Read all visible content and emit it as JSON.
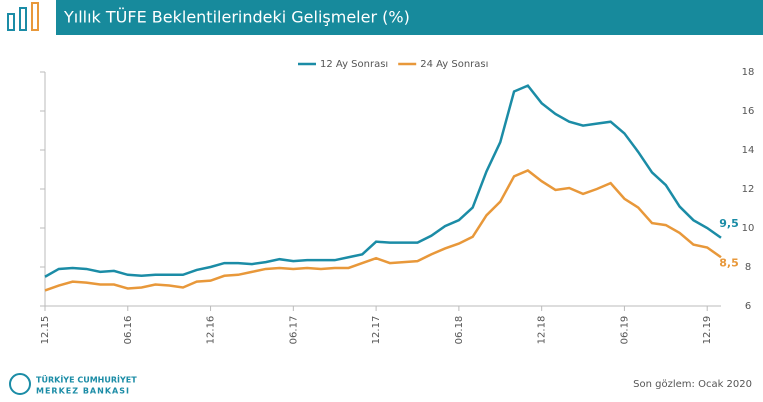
{
  "header": {
    "title": "Yıllık TÜFE Beklentilerindeki Gelişmeler (%)"
  },
  "logo_lines": [
    "TÜRKİYE CUMHURİYET",
    "MERKEZ BANKASI"
  ],
  "note": "Son gözlem: Ocak 2020",
  "chart_data": {
    "type": "line",
    "categories": [
      "12.15",
      null,
      null,
      null,
      null,
      null,
      "06.16",
      null,
      null,
      null,
      null,
      null,
      "12.16",
      null,
      null,
      null,
      null,
      null,
      "06.17",
      null,
      null,
      null,
      null,
      null,
      "12.17",
      null,
      null,
      null,
      null,
      null,
      "06.18",
      null,
      null,
      null,
      null,
      null,
      "12.18",
      null,
      null,
      null,
      null,
      null,
      "06.19",
      null,
      null,
      null,
      null,
      null,
      "12.19",
      null
    ],
    "series": [
      {
        "name": "12 Ay Sonrası",
        "color": "#1b8ca6",
        "values": [
          7.5,
          7.9,
          7.95,
          7.9,
          7.75,
          7.8,
          7.6,
          7.55,
          7.6,
          7.6,
          7.6,
          7.85,
          8.0,
          8.2,
          8.2,
          8.15,
          8.25,
          8.4,
          8.3,
          8.35,
          8.35,
          8.35,
          8.5,
          8.65,
          9.3,
          9.25,
          9.25,
          9.25,
          9.6,
          10.1,
          10.4,
          11.05,
          12.9,
          14.4,
          17.0,
          17.3,
          16.4,
          15.85,
          15.45,
          15.25,
          15.35,
          15.45,
          14.85,
          13.9,
          12.85,
          12.2,
          11.1,
          10.4,
          10.0,
          9.5
        ],
        "value_labels": [
          null,
          null,
          null,
          null,
          null,
          null,
          null,
          null,
          null,
          null,
          null,
          null,
          null,
          null,
          null,
          null,
          null,
          null,
          null,
          null,
          null,
          null,
          null,
          null,
          null,
          null,
          null,
          null,
          null,
          null,
          null,
          null,
          null,
          null,
          null,
          null,
          null,
          null,
          null,
          null,
          null,
          null,
          null,
          null,
          null,
          null,
          null,
          null,
          null,
          "9,5"
        ]
      },
      {
        "name": "24 Ay Sonrası",
        "color": "#e8983a",
        "values": [
          6.8,
          7.05,
          7.25,
          7.2,
          7.1,
          7.1,
          6.9,
          6.95,
          7.1,
          7.05,
          6.95,
          7.25,
          7.3,
          7.55,
          7.6,
          7.75,
          7.9,
          7.95,
          7.9,
          7.95,
          7.9,
          7.95,
          7.95,
          8.2,
          8.45,
          8.2,
          8.25,
          8.3,
          8.65,
          8.95,
          9.2,
          9.55,
          10.65,
          11.35,
          12.65,
          12.95,
          12.4,
          11.95,
          12.05,
          11.75,
          12.0,
          12.3,
          11.5,
          11.05,
          10.25,
          10.15,
          9.75,
          9.15,
          9.0,
          8.5
        ],
        "value_labels": [
          null,
          null,
          null,
          null,
          null,
          null,
          null,
          null,
          null,
          null,
          null,
          null,
          null,
          null,
          null,
          null,
          null,
          null,
          null,
          null,
          null,
          null,
          null,
          null,
          null,
          null,
          null,
          null,
          null,
          null,
          null,
          null,
          null,
          null,
          null,
          null,
          null,
          null,
          null,
          null,
          null,
          null,
          null,
          null,
          null,
          null,
          null,
          null,
          null,
          "8,5"
        ]
      }
    ],
    "ylim": [
      6,
      18
    ],
    "yticks": [
      6,
      8,
      10,
      12,
      14,
      16,
      18
    ],
    "legend": "top"
  }
}
